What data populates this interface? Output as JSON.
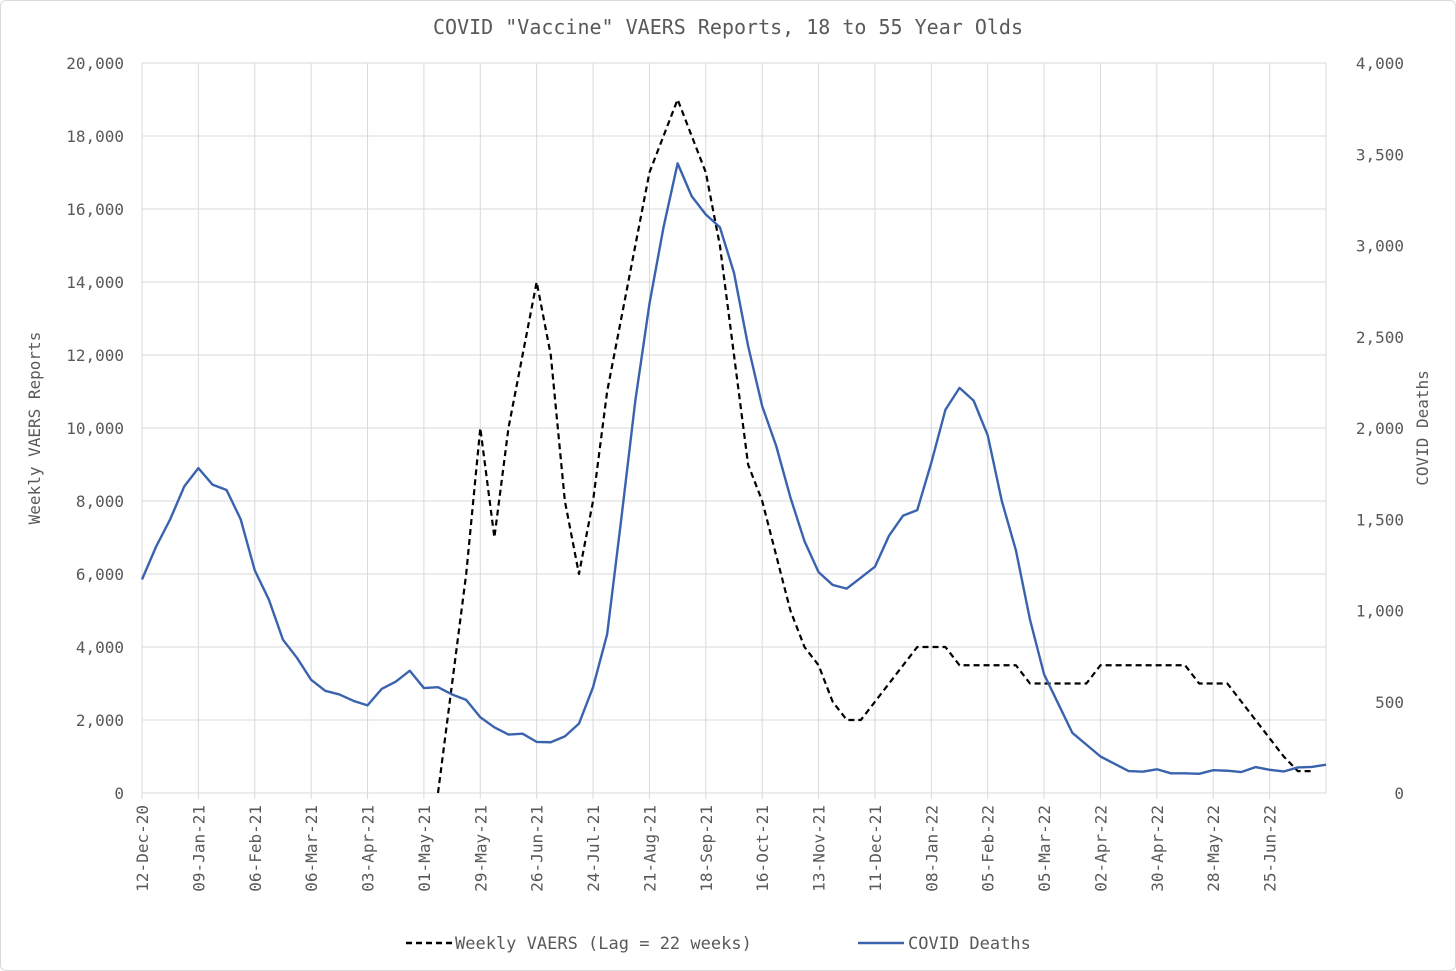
{
  "chart_data": {
    "type": "line",
    "title": "COVID \"Vaccine\" VAERS Reports, 18 to 55 Year Olds",
    "y_left_label": "Weekly VAERS Reports",
    "y_right_label": "COVID Deaths",
    "y_left_lim": [
      0,
      20000
    ],
    "y_right_lim": [
      0,
      4000
    ],
    "y_left_ticks": [
      "0",
      "2,000",
      "4,000",
      "6,000",
      "8,000",
      "10,000",
      "12,000",
      "14,000",
      "16,000",
      "18,000",
      "20,000"
    ],
    "y_right_ticks": [
      "0",
      "500",
      "1,000",
      "1,500",
      "2,000",
      "2,500",
      "3,000",
      "3,500",
      "4,000"
    ],
    "x_tick_labels": [
      "12-Dec-20",
      "09-Jan-21",
      "06-Feb-21",
      "06-Mar-21",
      "03-Apr-21",
      "01-May-21",
      "29-May-21",
      "26-Jun-21",
      "24-Jul-21",
      "21-Aug-21",
      "18-Sep-21",
      "16-Oct-21",
      "13-Nov-21",
      "11-Dec-21",
      "08-Jan-22",
      "05-Feb-22",
      "05-Mar-22",
      "02-Apr-22",
      "30-Apr-22",
      "28-May-22",
      "25-Jun-22"
    ],
    "week_count": 84,
    "grid": true,
    "legend_position": "bottom",
    "series": [
      {
        "name": "Weekly VAERS (Lag = 22 weeks)",
        "axis": "left",
        "color": "#000000",
        "style": "dashed",
        "start_week": 21,
        "values": [
          0,
          3000,
          6000,
          10000,
          7000,
          10000,
          12000,
          14000,
          12000,
          8000,
          6000,
          8000,
          11000,
          13000,
          15000,
          17000,
          18000,
          19000,
          18000,
          17000,
          15000,
          12000,
          9000,
          8000,
          6500,
          5000,
          4000,
          3500,
          2500,
          2000,
          2000,
          2500,
          3000,
          3500,
          4000,
          4000,
          4000,
          3500,
          3500,
          3500,
          3500,
          3500,
          3000,
          3000,
          3000,
          3000,
          3000,
          3500,
          3500,
          3500,
          3500,
          3500,
          3500,
          3500,
          3000,
          3000,
          3000,
          2500,
          2000,
          1500,
          1000,
          600,
          600
        ]
      },
      {
        "name": "COVID Deaths",
        "axis": "right",
        "color": "#3a63ad",
        "style": "solid",
        "start_week": 0,
        "values": [
          1170,
          1350,
          1500,
          1680,
          1780,
          1690,
          1660,
          1500,
          1220,
          1060,
          840,
          740,
          620,
          560,
          540,
          505,
          480,
          570,
          610,
          670,
          575,
          580,
          540,
          510,
          415,
          360,
          320,
          325,
          280,
          278,
          310,
          380,
          580,
          870,
          1500,
          2150,
          2680,
          3100,
          3450,
          3270,
          3170,
          3100,
          2850,
          2450,
          2120,
          1900,
          1620,
          1380,
          1210,
          1140,
          1120,
          1180,
          1240,
          1410,
          1520,
          1550,
          1810,
          2100,
          2220,
          2150,
          1960,
          1600,
          1330,
          950,
          650,
          490,
          330,
          265,
          200,
          160,
          120,
          117,
          130,
          108,
          108,
          105,
          125,
          122,
          115,
          142,
          127,
          118,
          140,
          143,
          155
        ]
      }
    ]
  }
}
